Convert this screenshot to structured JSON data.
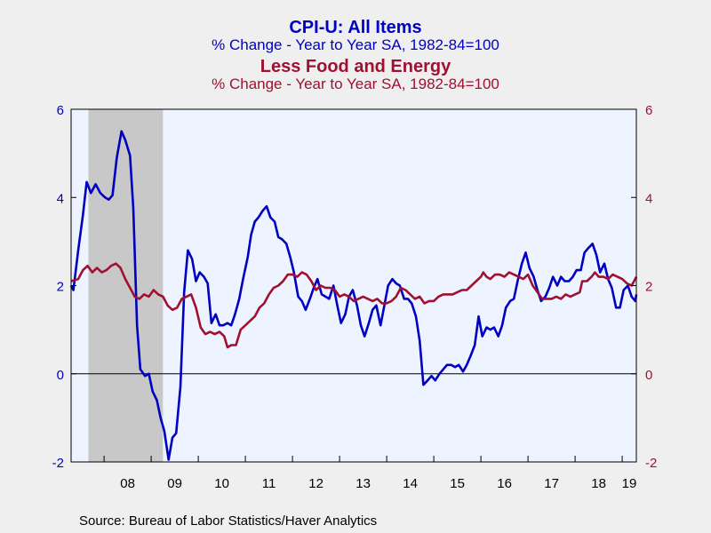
{
  "titles": {
    "series1_title": "CPI-U: All Items",
    "series1_subtitle": "% Change - Year to Year    SA, 1982-84=100",
    "series2_title": "Less Food and Energy",
    "series2_subtitle": "% Change - Year to Year    SA, 1982-84=100"
  },
  "source": "Source:  Bureau of Labor Statistics/Haver Analytics",
  "colors": {
    "series1": "#0000c0",
    "series2": "#a01030",
    "plot_bg": "#eef4ff",
    "recession": "#c8c8c8",
    "page_bg": "#efefef"
  },
  "chart_data": {
    "type": "line",
    "title": "CPI-U: All Items / Less Food and Energy",
    "ylim": [
      -2,
      6
    ],
    "xlim": [
      2007.3,
      2019.3
    ],
    "left_ticks": [
      "6",
      "4",
      "2",
      "0",
      "-2"
    ],
    "right_ticks": [
      "6",
      "4",
      "2",
      "0",
      "-2"
    ],
    "tick_values": [
      6,
      4,
      2,
      0,
      -2
    ],
    "year_labels": [
      "08",
      "09",
      "10",
      "11",
      "12",
      "13",
      "14",
      "15",
      "16",
      "17",
      "18",
      "19"
    ],
    "year_label_values": [
      2008.5,
      2009.5,
      2010.5,
      2011.5,
      2012.5,
      2013.5,
      2014.5,
      2015.5,
      2016.5,
      2017.5,
      2018.5,
      2019.5
    ],
    "recession": [
      2007.667,
      2009.25
    ],
    "zero_line": 0,
    "series": [
      {
        "name": "CPI-U: All Items",
        "color": "#0000c0",
        "points": [
          [
            2007.3,
            2.0
          ],
          [
            2007.35,
            1.9
          ],
          [
            2007.45,
            2.8
          ],
          [
            2007.55,
            3.6
          ],
          [
            2007.63,
            4.35
          ],
          [
            2007.72,
            4.1
          ],
          [
            2007.82,
            4.3
          ],
          [
            2007.92,
            4.1
          ],
          [
            2008.02,
            4.0
          ],
          [
            2008.1,
            3.95
          ],
          [
            2008.18,
            4.05
          ],
          [
            2008.27,
            4.9
          ],
          [
            2008.37,
            5.5
          ],
          [
            2008.45,
            5.3
          ],
          [
            2008.55,
            4.95
          ],
          [
            2008.62,
            3.75
          ],
          [
            2008.7,
            1.1
          ],
          [
            2008.77,
            0.1
          ],
          [
            2008.87,
            -0.05
          ],
          [
            2008.95,
            0.0
          ],
          [
            2009.03,
            -0.4
          ],
          [
            2009.12,
            -0.6
          ],
          [
            2009.2,
            -1.0
          ],
          [
            2009.28,
            -1.3
          ],
          [
            2009.37,
            -1.95
          ],
          [
            2009.45,
            -1.45
          ],
          [
            2009.53,
            -1.35
          ],
          [
            2009.62,
            -0.3
          ],
          [
            2009.7,
            1.85
          ],
          [
            2009.78,
            2.8
          ],
          [
            2009.87,
            2.6
          ],
          [
            2009.95,
            2.1
          ],
          [
            2010.03,
            2.3
          ],
          [
            2010.12,
            2.2
          ],
          [
            2010.2,
            2.05
          ],
          [
            2010.28,
            1.15
          ],
          [
            2010.37,
            1.35
          ],
          [
            2010.45,
            1.1
          ],
          [
            2010.53,
            1.1
          ],
          [
            2010.62,
            1.15
          ],
          [
            2010.7,
            1.1
          ],
          [
            2010.78,
            1.35
          ],
          [
            2010.87,
            1.7
          ],
          [
            2010.95,
            2.15
          ],
          [
            2011.05,
            2.65
          ],
          [
            2011.12,
            3.15
          ],
          [
            2011.2,
            3.45
          ],
          [
            2011.28,
            3.55
          ],
          [
            2011.37,
            3.7
          ],
          [
            2011.45,
            3.8
          ],
          [
            2011.53,
            3.55
          ],
          [
            2011.62,
            3.45
          ],
          [
            2011.7,
            3.1
          ],
          [
            2011.78,
            3.05
          ],
          [
            2011.87,
            2.95
          ],
          [
            2011.95,
            2.65
          ],
          [
            2012.03,
            2.3
          ],
          [
            2012.12,
            1.75
          ],
          [
            2012.2,
            1.65
          ],
          [
            2012.28,
            1.45
          ],
          [
            2012.37,
            1.7
          ],
          [
            2012.45,
            1.95
          ],
          [
            2012.53,
            2.15
          ],
          [
            2012.62,
            1.8
          ],
          [
            2012.7,
            1.75
          ],
          [
            2012.78,
            1.7
          ],
          [
            2012.87,
            2.0
          ],
          [
            2012.95,
            1.55
          ],
          [
            2013.03,
            1.15
          ],
          [
            2013.12,
            1.35
          ],
          [
            2013.2,
            1.75
          ],
          [
            2013.28,
            1.9
          ],
          [
            2013.37,
            1.55
          ],
          [
            2013.45,
            1.1
          ],
          [
            2013.53,
            0.85
          ],
          [
            2013.62,
            1.15
          ],
          [
            2013.7,
            1.45
          ],
          [
            2013.78,
            1.55
          ],
          [
            2013.87,
            1.1
          ],
          [
            2013.95,
            1.55
          ],
          [
            2014.03,
            2.0
          ],
          [
            2014.12,
            2.15
          ],
          [
            2014.2,
            2.05
          ],
          [
            2014.28,
            2.0
          ],
          [
            2014.37,
            1.7
          ],
          [
            2014.45,
            1.7
          ],
          [
            2014.53,
            1.6
          ],
          [
            2014.62,
            1.3
          ],
          [
            2014.7,
            0.75
          ],
          [
            2014.78,
            -0.25
          ],
          [
            2014.87,
            -0.15
          ],
          [
            2014.95,
            -0.05
          ],
          [
            2015.03,
            -0.15
          ],
          [
            2015.12,
            0.0
          ],
          [
            2015.2,
            0.1
          ],
          [
            2015.28,
            0.2
          ],
          [
            2015.37,
            0.2
          ],
          [
            2015.45,
            0.15
          ],
          [
            2015.53,
            0.2
          ],
          [
            2015.62,
            0.05
          ],
          [
            2015.7,
            0.2
          ],
          [
            2015.78,
            0.4
          ],
          [
            2015.87,
            0.65
          ],
          [
            2015.95,
            1.3
          ],
          [
            2016.03,
            0.85
          ],
          [
            2016.12,
            1.05
          ],
          [
            2016.2,
            1.0
          ],
          [
            2016.28,
            1.05
          ],
          [
            2016.37,
            0.85
          ],
          [
            2016.45,
            1.1
          ],
          [
            2016.53,
            1.5
          ],
          [
            2016.62,
            1.65
          ],
          [
            2016.7,
            1.7
          ],
          [
            2016.78,
            2.1
          ],
          [
            2016.87,
            2.5
          ],
          [
            2016.95,
            2.75
          ],
          [
            2017.03,
            2.4
          ],
          [
            2017.12,
            2.2
          ],
          [
            2017.2,
            1.9
          ],
          [
            2017.28,
            1.65
          ],
          [
            2017.37,
            1.75
          ],
          [
            2017.45,
            1.95
          ],
          [
            2017.53,
            2.2
          ],
          [
            2017.62,
            2.0
          ],
          [
            2017.7,
            2.2
          ],
          [
            2017.78,
            2.1
          ],
          [
            2017.87,
            2.1
          ],
          [
            2017.95,
            2.2
          ],
          [
            2018.03,
            2.35
          ],
          [
            2018.12,
            2.35
          ],
          [
            2018.2,
            2.75
          ],
          [
            2018.28,
            2.85
          ],
          [
            2018.37,
            2.95
          ],
          [
            2018.45,
            2.7
          ],
          [
            2018.53,
            2.3
          ],
          [
            2018.62,
            2.5
          ],
          [
            2018.7,
            2.15
          ],
          [
            2018.78,
            1.95
          ],
          [
            2018.87,
            1.5
          ],
          [
            2018.95,
            1.5
          ],
          [
            2019.03,
            1.9
          ],
          [
            2019.12,
            2.0
          ],
          [
            2019.2,
            1.75
          ],
          [
            2019.28,
            1.65
          ],
          [
            2019.3,
            1.8
          ]
        ]
      },
      {
        "name": "Less Food and Energy",
        "color": "#a01030",
        "points": [
          [
            2007.3,
            2.1
          ],
          [
            2007.45,
            2.15
          ],
          [
            2007.55,
            2.35
          ],
          [
            2007.65,
            2.45
          ],
          [
            2007.75,
            2.3
          ],
          [
            2007.85,
            2.4
          ],
          [
            2007.95,
            2.3
          ],
          [
            2008.05,
            2.35
          ],
          [
            2008.15,
            2.45
          ],
          [
            2008.25,
            2.5
          ],
          [
            2008.35,
            2.4
          ],
          [
            2008.45,
            2.15
          ],
          [
            2008.55,
            1.95
          ],
          [
            2008.65,
            1.75
          ],
          [
            2008.75,
            1.7
          ],
          [
            2008.85,
            1.8
          ],
          [
            2008.95,
            1.75
          ],
          [
            2009.05,
            1.9
          ],
          [
            2009.15,
            1.8
          ],
          [
            2009.25,
            1.75
          ],
          [
            2009.35,
            1.55
          ],
          [
            2009.45,
            1.45
          ],
          [
            2009.55,
            1.5
          ],
          [
            2009.65,
            1.7
          ],
          [
            2009.75,
            1.75
          ],
          [
            2009.85,
            1.8
          ],
          [
            2009.95,
            1.5
          ],
          [
            2010.05,
            1.05
          ],
          [
            2010.15,
            0.9
          ],
          [
            2010.25,
            0.95
          ],
          [
            2010.35,
            0.9
          ],
          [
            2010.45,
            0.95
          ],
          [
            2010.55,
            0.85
          ],
          [
            2010.62,
            0.6
          ],
          [
            2010.7,
            0.65
          ],
          [
            2010.8,
            0.65
          ],
          [
            2010.9,
            1.0
          ],
          [
            2011.0,
            1.1
          ],
          [
            2011.1,
            1.2
          ],
          [
            2011.2,
            1.3
          ],
          [
            2011.3,
            1.5
          ],
          [
            2011.4,
            1.6
          ],
          [
            2011.5,
            1.8
          ],
          [
            2011.6,
            1.95
          ],
          [
            2011.7,
            2.0
          ],
          [
            2011.8,
            2.1
          ],
          [
            2011.9,
            2.25
          ],
          [
            2012.0,
            2.25
          ],
          [
            2012.1,
            2.2
          ],
          [
            2012.2,
            2.3
          ],
          [
            2012.3,
            2.25
          ],
          [
            2012.4,
            2.1
          ],
          [
            2012.5,
            1.9
          ],
          [
            2012.6,
            2.0
          ],
          [
            2012.7,
            1.95
          ],
          [
            2012.8,
            1.95
          ],
          [
            2012.9,
            1.9
          ],
          [
            2013.0,
            1.75
          ],
          [
            2013.1,
            1.8
          ],
          [
            2013.2,
            1.75
          ],
          [
            2013.3,
            1.65
          ],
          [
            2013.4,
            1.7
          ],
          [
            2013.5,
            1.75
          ],
          [
            2013.6,
            1.7
          ],
          [
            2013.7,
            1.65
          ],
          [
            2013.8,
            1.7
          ],
          [
            2013.9,
            1.6
          ],
          [
            2014.0,
            1.6
          ],
          [
            2014.1,
            1.65
          ],
          [
            2014.2,
            1.75
          ],
          [
            2014.3,
            1.95
          ],
          [
            2014.4,
            1.9
          ],
          [
            2014.5,
            1.8
          ],
          [
            2014.6,
            1.7
          ],
          [
            2014.7,
            1.75
          ],
          [
            2014.8,
            1.6
          ],
          [
            2014.9,
            1.65
          ],
          [
            2015.0,
            1.65
          ],
          [
            2015.1,
            1.75
          ],
          [
            2015.2,
            1.8
          ],
          [
            2015.3,
            1.8
          ],
          [
            2015.4,
            1.8
          ],
          [
            2015.5,
            1.85
          ],
          [
            2015.6,
            1.9
          ],
          [
            2015.7,
            1.9
          ],
          [
            2015.8,
            2.0
          ],
          [
            2015.9,
            2.1
          ],
          [
            2016.0,
            2.2
          ],
          [
            2016.05,
            2.3
          ],
          [
            2016.12,
            2.2
          ],
          [
            2016.2,
            2.15
          ],
          [
            2016.3,
            2.25
          ],
          [
            2016.4,
            2.25
          ],
          [
            2016.5,
            2.2
          ],
          [
            2016.6,
            2.3
          ],
          [
            2016.7,
            2.25
          ],
          [
            2016.8,
            2.2
          ],
          [
            2016.9,
            2.15
          ],
          [
            2017.0,
            2.25
          ],
          [
            2017.1,
            2.0
          ],
          [
            2017.2,
            1.85
          ],
          [
            2017.3,
            1.7
          ],
          [
            2017.4,
            1.7
          ],
          [
            2017.5,
            1.7
          ],
          [
            2017.6,
            1.75
          ],
          [
            2017.7,
            1.7
          ],
          [
            2017.8,
            1.8
          ],
          [
            2017.9,
            1.75
          ],
          [
            2018.0,
            1.8
          ],
          [
            2018.1,
            1.85
          ],
          [
            2018.15,
            2.1
          ],
          [
            2018.25,
            2.1
          ],
          [
            2018.35,
            2.2
          ],
          [
            2018.42,
            2.3
          ],
          [
            2018.5,
            2.2
          ],
          [
            2018.6,
            2.2
          ],
          [
            2018.7,
            2.15
          ],
          [
            2018.8,
            2.25
          ],
          [
            2018.9,
            2.2
          ],
          [
            2019.0,
            2.15
          ],
          [
            2019.1,
            2.05
          ],
          [
            2019.2,
            2.0
          ],
          [
            2019.25,
            2.1
          ],
          [
            2019.3,
            2.2
          ]
        ]
      }
    ]
  }
}
